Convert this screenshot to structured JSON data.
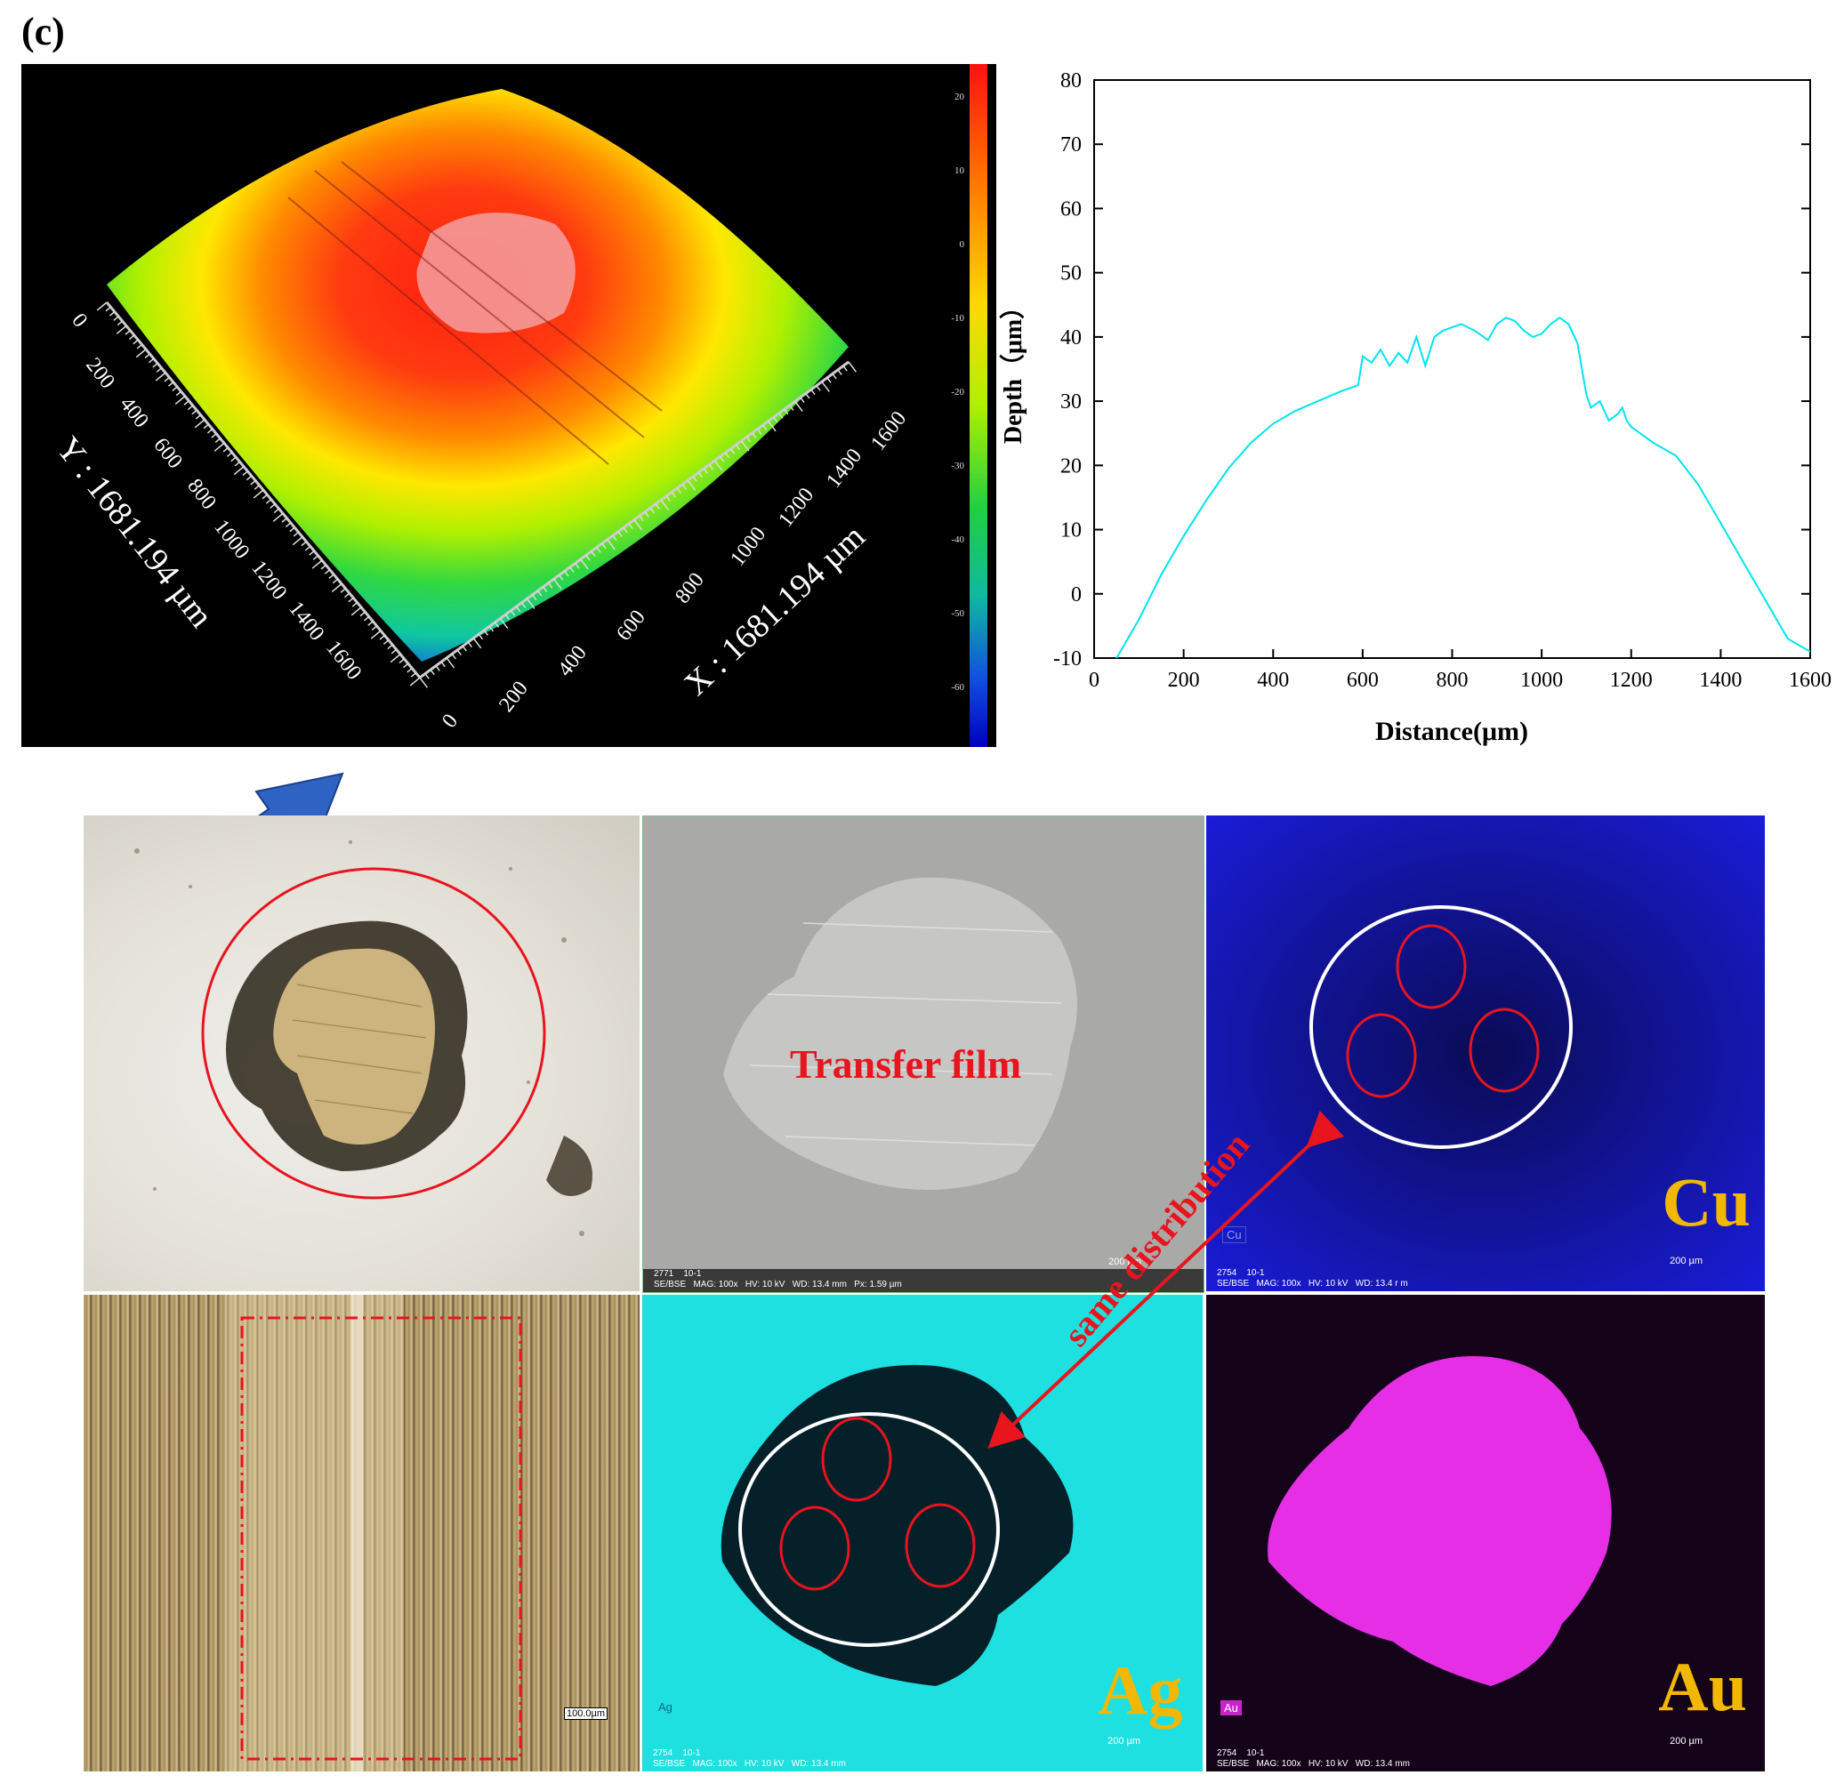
{
  "panel_label": "(c)",
  "profile3d": {
    "x_label": "X : 1681.194 µm",
    "y_label": "Y : 1681.194 µm",
    "x_ticks": [
      "0",
      "200",
      "400",
      "600",
      "800",
      "1000",
      "1200",
      "1400",
      "1600"
    ],
    "y_ticks": [
      "0",
      "200",
      "400",
      "600",
      "800",
      "1000",
      "1200",
      "1400",
      "1600"
    ],
    "colorbar_ticks": [
      "20",
      "10",
      "0",
      "-10",
      "-20",
      "-30",
      "-40",
      "-50",
      "-60"
    ]
  },
  "chart_data": {
    "type": "line",
    "title": "",
    "xlabel": "Distance(μm)",
    "ylabel": "Depth（μm）",
    "xlim": [
      0,
      1600
    ],
    "ylim": [
      -10,
      80
    ],
    "x_ticks": [
      0,
      200,
      400,
      600,
      800,
      1000,
      1200,
      1400,
      1600
    ],
    "y_ticks": [
      -10,
      0,
      10,
      20,
      30,
      40,
      50,
      60,
      70,
      80
    ],
    "series": [
      {
        "color": "#00e5f0",
        "x": [
          50,
          100,
          150,
          200,
          250,
          300,
          350,
          400,
          450,
          500,
          550,
          590,
          600,
          620,
          640,
          660,
          680,
          700,
          720,
          740,
          760,
          780,
          800,
          820,
          850,
          880,
          900,
          920,
          940,
          960,
          980,
          1000,
          1020,
          1040,
          1060,
          1080,
          1090,
          1100,
          1110,
          1130,
          1150,
          1170,
          1180,
          1190,
          1200,
          1250,
          1300,
          1350,
          1400,
          1450,
          1500,
          1550,
          1600
        ],
        "y": [
          -10,
          -4,
          3,
          9,
          14.5,
          19.5,
          23.5,
          26.5,
          28.5,
          30,
          31.5,
          32.5,
          37,
          36,
          38,
          35.5,
          37.5,
          36,
          40,
          35.5,
          40,
          41,
          41.5,
          42,
          41,
          39.5,
          42,
          43,
          42.5,
          41,
          40,
          40.5,
          42,
          43,
          42,
          39,
          35,
          31,
          29,
          30,
          27,
          28,
          29,
          27,
          26,
          23.5,
          21.5,
          17,
          11,
          5,
          -1,
          -7,
          -9
        ]
      }
    ]
  },
  "images": {
    "sem_caption": "Transfer film",
    "sem_footer": "2771    10-1\nSE/BSE   MAG: 100x   HV: 10 kV   WD: 13.4 mm   Px: 1.59 µm",
    "sem_scale": "200 µm",
    "cu_label": "Cu",
    "cu_chip": "Cu",
    "cu_footer": "2754    10-1\nSE/BSE   MAG: 100x   HV: 10 kV   WD: 13.4 r m",
    "cu_scale": "200 µm",
    "optical_scale": "100.0µm",
    "ag_label": "Ag",
    "ag_chip": "Ag",
    "ag_footer": "2754    10-1\nSE/BSE   MAG: 100x   HV: 10 kV   WD: 13.4 mm",
    "ag_scale": "200 µm",
    "au_label": "Au",
    "au_chip": "Au",
    "au_footer": "2754    10-1\nSE/BSE   MAG: 100x   HV: 10 kV   WD: 13.4 mm",
    "au_scale": "200 µm",
    "arrow_text": "same distribution"
  },
  "colors": {
    "line": "#00e5f0",
    "element_label": "#f2b800",
    "annotation_red": "#e8141e",
    "arrow_blue": "#2e63c4"
  }
}
